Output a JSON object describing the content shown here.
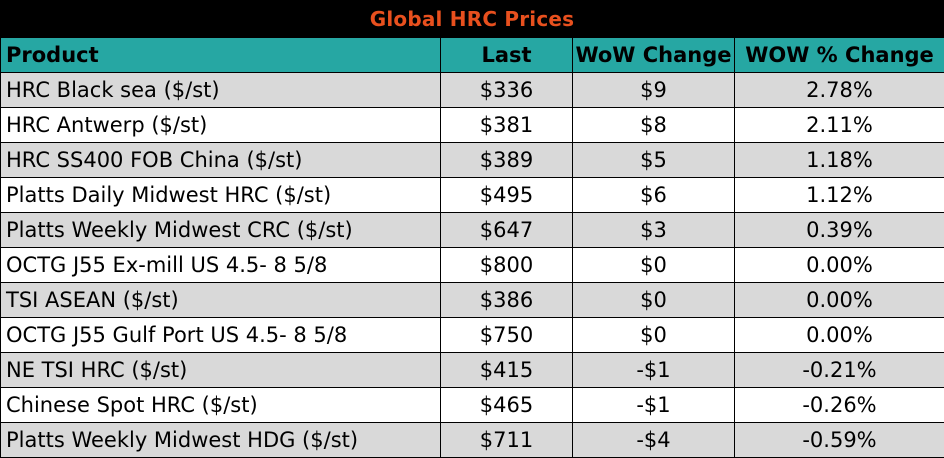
{
  "title": "Global HRC Prices",
  "colors": {
    "title_bg": "#000000",
    "title_text": "#e8501e",
    "header_bg": "#26a7a3",
    "row_shaded": "#d9d9d9",
    "row_plain": "#ffffff"
  },
  "columns": [
    "Product",
    "Last",
    "WoW Change",
    "WOW % Change"
  ],
  "rows": [
    {
      "product": "HRC Black sea ($/st)",
      "last": "$336",
      "wow": "$9",
      "pct": "2.78%"
    },
    {
      "product": "HRC Antwerp ($/st)",
      "last": "$381",
      "wow": "$8",
      "pct": "2.11%"
    },
    {
      "product": "HRC SS400 FOB China ($/st)",
      "last": "$389",
      "wow": "$5",
      "pct": "1.18%"
    },
    {
      "product": "Platts Daily Midwest HRC ($/st)",
      "last": "$495",
      "wow": "$6",
      "pct": "1.12%"
    },
    {
      "product": "Platts Weekly Midwest CRC ($/st)",
      "last": "$647",
      "wow": "$3",
      "pct": "0.39%"
    },
    {
      "product": "OCTG J55 Ex-mill US 4.5- 8 5/8",
      "last": "$800",
      "wow": "$0",
      "pct": "0.00%"
    },
    {
      "product": "TSI ASEAN ($/st)",
      "last": "$386",
      "wow": "$0",
      "pct": "0.00%"
    },
    {
      "product": "OCTG J55 Gulf Port US 4.5- 8 5/8",
      "last": "$750",
      "wow": "$0",
      "pct": "0.00%"
    },
    {
      "product": "NE TSI HRC ($/st)",
      "last": "$415",
      "wow": "-$1",
      "pct": "-0.21%"
    },
    {
      "product": "Chinese Spot HRC ($/st)",
      "last": "$465",
      "wow": "-$1",
      "pct": "-0.26%"
    },
    {
      "product": "Platts Weekly Midwest HDG ($/st)",
      "last": "$711",
      "wow": "-$4",
      "pct": "-0.59%"
    }
  ]
}
